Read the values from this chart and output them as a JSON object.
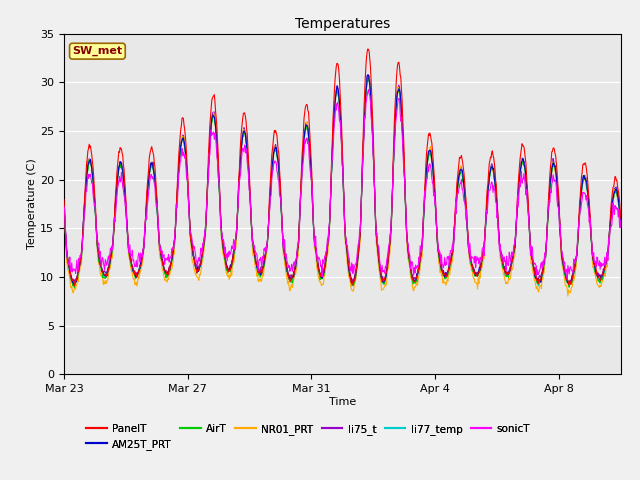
{
  "title": "Temperatures",
  "xlabel": "Time",
  "ylabel": "Temperature (C)",
  "ylim": [
    0,
    35
  ],
  "yticks": [
    0,
    5,
    10,
    15,
    20,
    25,
    30,
    35
  ],
  "fig_facecolor": "#f0f0f0",
  "plot_bg_color": "#e8e8e8",
  "annotation_text": "SW_met",
  "annotation_bg": "#ffff99",
  "annotation_border": "#996600",
  "annotation_text_color": "#880000",
  "series": [
    {
      "name": "PanelT",
      "color": "#ff0000",
      "zorder": 7
    },
    {
      "name": "AM25T_PRT",
      "color": "#0000cc",
      "zorder": 6
    },
    {
      "name": "AirT",
      "color": "#00cc00",
      "zorder": 5
    },
    {
      "name": "NR01_PRT",
      "color": "#ffaa00",
      "zorder": 4
    },
    {
      "name": "li75_t",
      "color": "#9900cc",
      "zorder": 3
    },
    {
      "name": "li77_temp",
      "color": "#00cccc",
      "zorder": 2
    },
    {
      "name": "sonicT",
      "color": "#ff00ff",
      "zorder": 8
    }
  ],
  "xtick_labels": [
    "Mar 23",
    "Mar 27",
    "Mar 31",
    "Apr 4",
    "Apr 8"
  ],
  "xtick_positions": [
    0,
    4,
    8,
    12,
    16
  ],
  "num_days": 18,
  "points_per_day": 48,
  "legend_ncol": 6,
  "legend_row2": [
    "sonicT"
  ],
  "linewidth": 0.8
}
